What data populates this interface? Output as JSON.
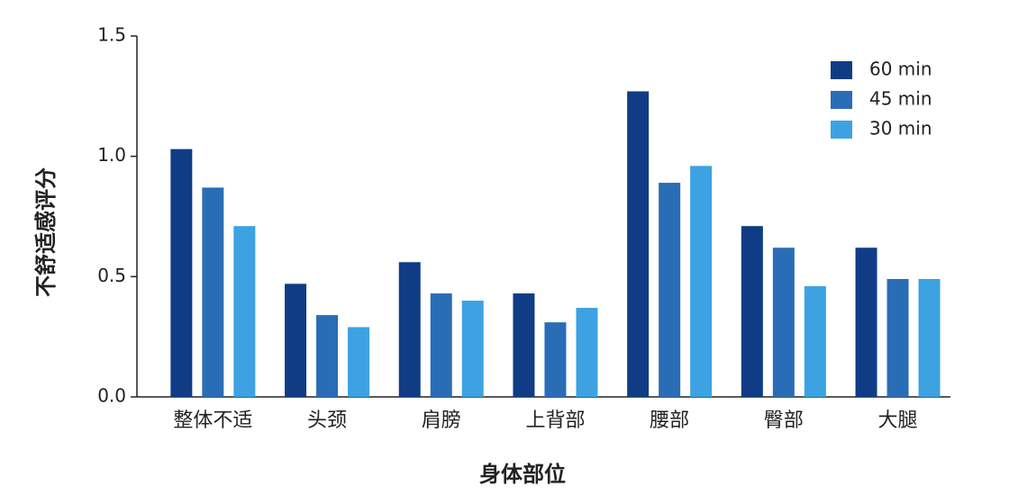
{
  "chart_data": {
    "type": "bar",
    "x_label": "身体部位",
    "y_label": "不舒适感评分",
    "categories": [
      "整体不适",
      "头颈",
      "肩膀",
      "上背部",
      "腰部",
      "臀部",
      "大腿"
    ],
    "series": [
      {
        "name": "60 min",
        "color": "#0f3c85",
        "values": [
          1.03,
          0.47,
          0.56,
          0.43,
          1.27,
          0.71,
          0.62
        ]
      },
      {
        "name": "45 min",
        "color": "#2a6db7",
        "values": [
          0.87,
          0.34,
          0.43,
          0.31,
          0.89,
          0.62,
          0.49
        ]
      },
      {
        "name": "30 min",
        "color": "#3ca2e2",
        "values": [
          0.71,
          0.29,
          0.4,
          0.37,
          0.96,
          0.46,
          0.49
        ]
      }
    ],
    "ylim": [
      0,
      1.5
    ],
    "yticks": [
      {
        "value": 0,
        "label": "0.0"
      },
      0.5,
      {
        "value": 1,
        "label": "1.0"
      },
      {
        "value": 1.5,
        "label": "1.5"
      }
    ],
    "legend": "upper right"
  }
}
